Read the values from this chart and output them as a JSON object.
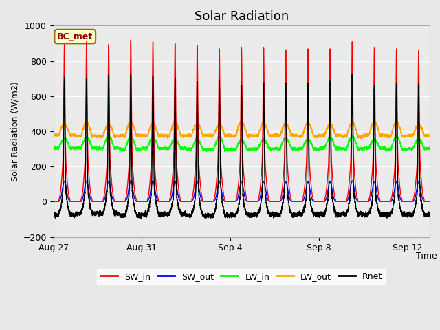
{
  "title": "Solar Radiation",
  "ylabel": "Solar Radiation (W/m2)",
  "xlabel": "Time",
  "ylim": [
    -200,
    1000
  ],
  "fig_bg_color": "#e8e8e8",
  "plot_bg_color": "#ebebeb",
  "annotation_text": "BC_met",
  "annotation_bg": "#ffffcc",
  "annotation_border": "#996600",
  "legend_entries": [
    "SW_in",
    "SW_out",
    "LW_in",
    "LW_out",
    "Rnet"
  ],
  "legend_colors": [
    "red",
    "blue",
    "lime",
    "orange",
    "black"
  ],
  "n_days": 17,
  "points_per_day": 288,
  "xtick_labels": [
    "Aug 27",
    "Aug 31",
    "Sep 4",
    "Sep 8",
    "Sep 12"
  ],
  "xtick_positions": [
    0,
    4,
    8,
    12,
    16
  ],
  "xlim": [
    0,
    17
  ]
}
